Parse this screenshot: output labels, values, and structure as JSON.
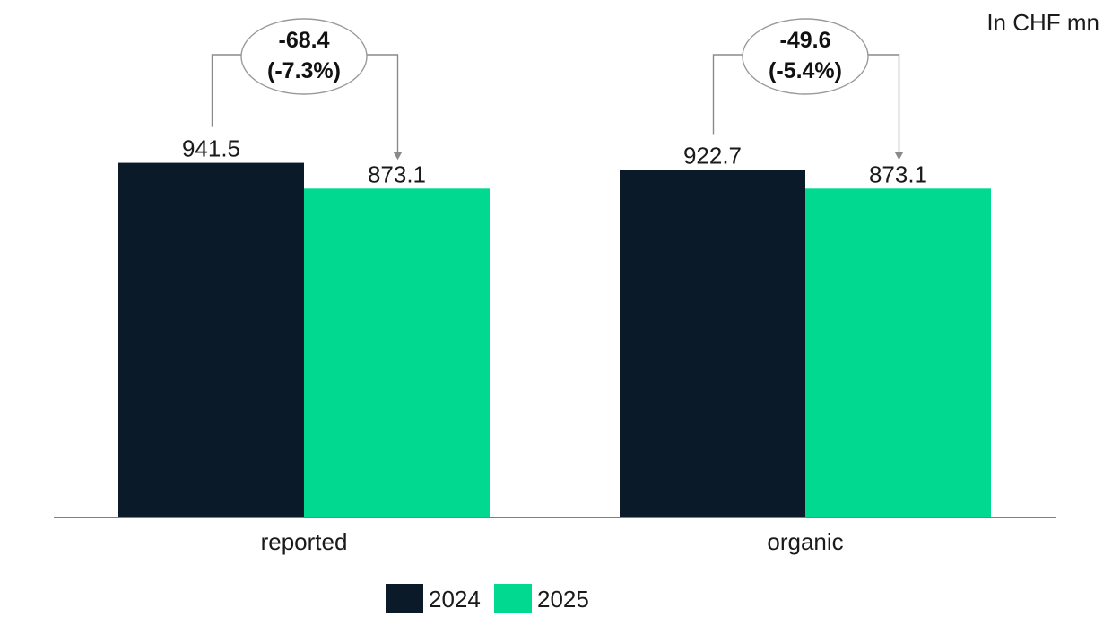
{
  "chart_data": {
    "type": "bar",
    "unit_label": "In CHF mn",
    "categories": [
      "reported",
      "organic"
    ],
    "series": [
      {
        "name": "2024",
        "values": [
          941.5,
          922.7
        ],
        "color": "#0b1a28"
      },
      {
        "name": "2025",
        "values": [
          873.1,
          873.1
        ],
        "color": "#00d98f"
      }
    ],
    "value_labels": [
      [
        "941.5",
        "922.7"
      ],
      [
        "873.1",
        "873.1"
      ]
    ],
    "change_annotations": [
      {
        "category": "reported",
        "absolute": "-68.4",
        "percent": "(-7.3%)"
      },
      {
        "category": "organic",
        "absolute": "-49.6",
        "percent": "(-5.4%)"
      }
    ],
    "legend_position": "bottom-center",
    "grid": false,
    "ylim": [
      0,
      1000
    ]
  }
}
